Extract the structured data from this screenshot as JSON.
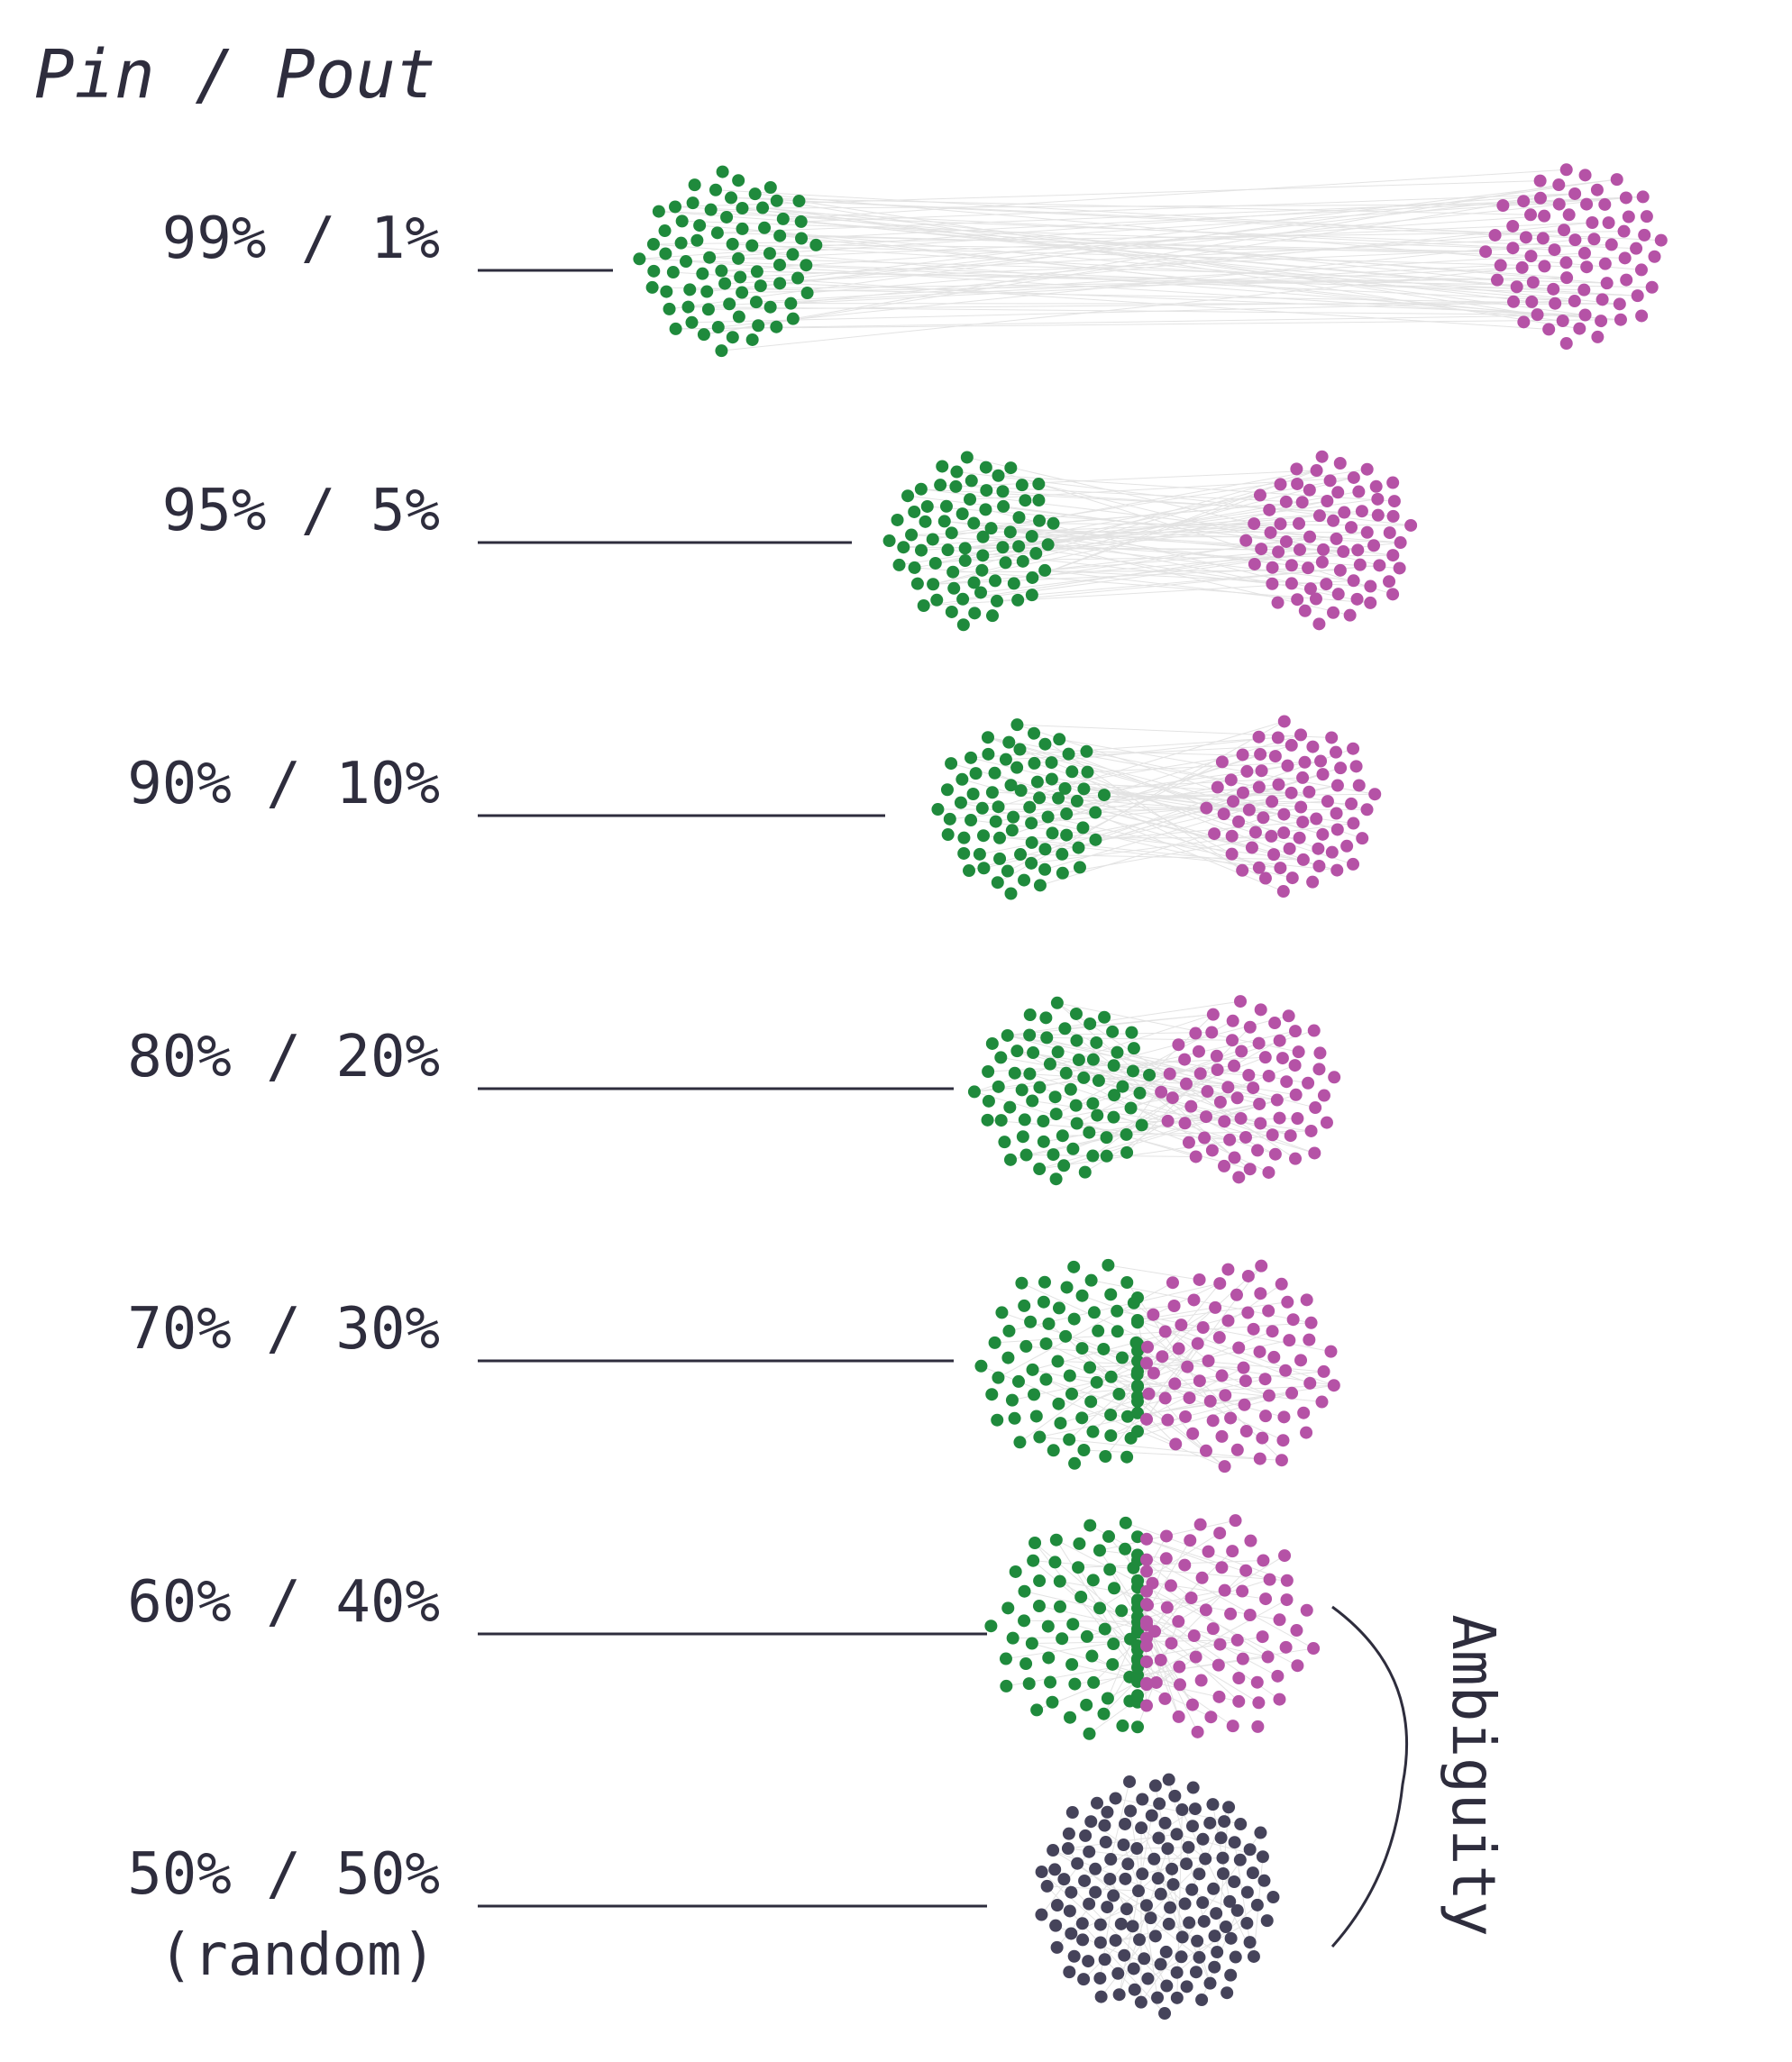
{
  "header": {
    "title": "Pin / Pout"
  },
  "rows": [
    {
      "label": "99% /  1%"
    },
    {
      "label": "95% /  5%"
    },
    {
      "label": "90% / 10%"
    },
    {
      "label": "80% / 20%"
    },
    {
      "label": "70% / 30%"
    },
    {
      "label": "60% / 40%"
    },
    {
      "label": "50% / 50%",
      "sublabel": "(random)"
    }
  ],
  "annotation": {
    "label": "Ambiguity"
  },
  "colors": {
    "community_a": "#1f8a3c",
    "community_b": "#b552a6",
    "random": "#45435a",
    "text": "#2e2d3d",
    "edges": "#e3e3e3"
  }
}
